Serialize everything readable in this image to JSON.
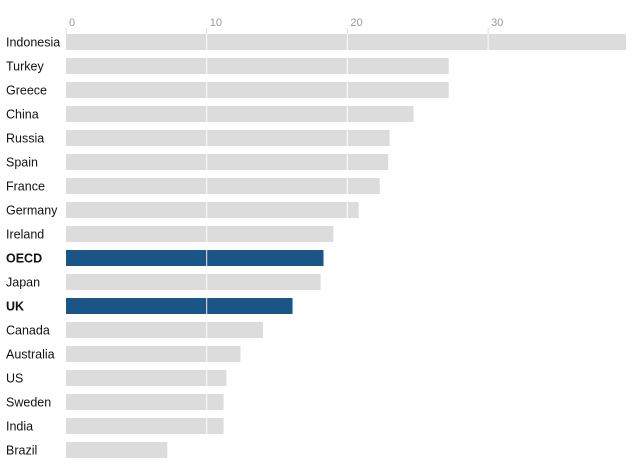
{
  "chart_data": {
    "type": "bar",
    "orientation": "horizontal",
    "categories": [
      "Indonesia",
      "Turkey",
      "Greece",
      "China",
      "Russia",
      "Spain",
      "France",
      "Germany",
      "Ireland",
      "OECD",
      "Japan",
      "UK",
      "Canada",
      "Australia",
      "US",
      "Sweden",
      "India",
      "Brazil"
    ],
    "values": [
      39.8,
      27.2,
      27.2,
      24.7,
      23.0,
      22.9,
      22.3,
      20.8,
      19.0,
      18.3,
      18.1,
      16.1,
      14.0,
      12.4,
      11.4,
      11.2,
      11.2,
      7.2
    ],
    "highlighted": [
      "OECD",
      "UK"
    ],
    "xlim": [
      0,
      39.8
    ],
    "xticks": [
      "0",
      "10",
      "20",
      "30"
    ],
    "tick_values": [
      0,
      10,
      20,
      30
    ],
    "title": "",
    "xlabel": "",
    "ylabel": "",
    "grid": true,
    "colors": {
      "default": "#dcdcdc",
      "highlight": "#1b5585",
      "label": "#121212",
      "tick": "#999999"
    }
  }
}
